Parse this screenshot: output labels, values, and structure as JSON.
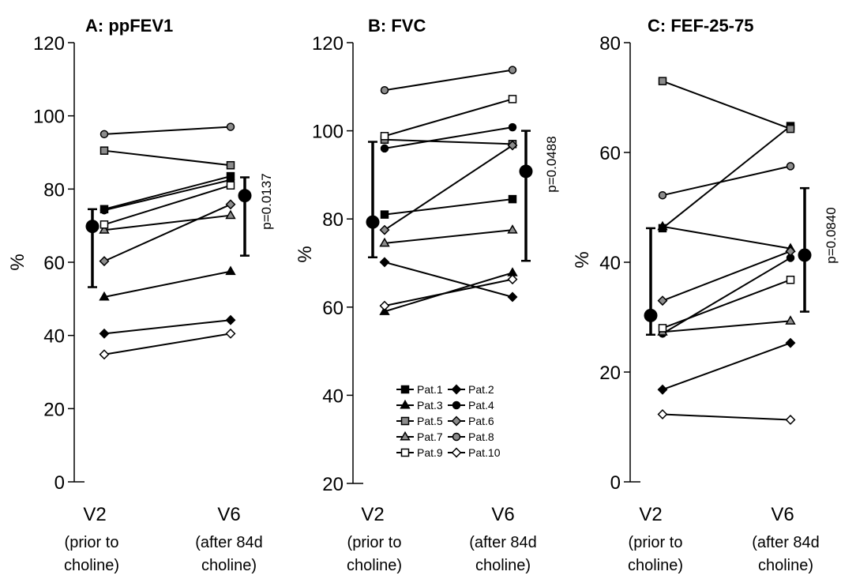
{
  "chart_data": [
    {
      "type": "line",
      "panel": "A",
      "title": "A: ppFEV1",
      "ylabel": "%",
      "ylim": [
        0,
        120
      ],
      "yticks": [
        0,
        20,
        40,
        60,
        80,
        100,
        120
      ],
      "categories": [
        {
          "main": "V2",
          "sub": [
            "(prior to",
            "choline)"
          ]
        },
        {
          "main": "V6",
          "sub": [
            "(after 84d",
            "choline)"
          ]
        }
      ],
      "series": [
        {
          "name": "Pat.1",
          "values": [
            74.5,
            83.5
          ]
        },
        {
          "name": "Pat.2",
          "values": [
            40.5,
            44.2
          ]
        },
        {
          "name": "Pat.3",
          "values": [
            50.5,
            57.5
          ]
        },
        {
          "name": "Pat.4",
          "values": [
            74.2,
            82.5
          ]
        },
        {
          "name": "Pat.5",
          "values": [
            90.5,
            86.5
          ]
        },
        {
          "name": "Pat.6",
          "values": [
            60.3,
            75.8
          ]
        },
        {
          "name": "Pat.7",
          "values": [
            68.8,
            72.8
          ]
        },
        {
          "name": "Pat.8",
          "values": [
            95.0,
            97.0
          ]
        },
        {
          "name": "Pat.9",
          "values": [
            70.3,
            81.0
          ]
        },
        {
          "name": "Pat.10",
          "values": [
            34.8,
            40.5
          ]
        }
      ],
      "summary": [
        {
          "mean": 69.8,
          "low": 53.2,
          "high": 74.5
        },
        {
          "mean": 78.2,
          "low": 61.8,
          "high": 83.2
        }
      ],
      "p_value": "p=0.0137"
    },
    {
      "type": "line",
      "panel": "B",
      "title": "B: FVC",
      "ylabel": "%",
      "ylim": [
        20,
        120
      ],
      "yticks": [
        20,
        40,
        60,
        80,
        100,
        120
      ],
      "categories": [
        {
          "main": "V2",
          "sub": [
            "(prior to",
            "choline)"
          ]
        },
        {
          "main": "V6",
          "sub": [
            "(after 84d",
            "choline)"
          ]
        }
      ],
      "series": [
        {
          "name": "Pat.1",
          "values": [
            81.0,
            84.5
          ]
        },
        {
          "name": "Pat.2",
          "values": [
            70.2,
            62.3
          ]
        },
        {
          "name": "Pat.3",
          "values": [
            59.0,
            67.8
          ]
        },
        {
          "name": "Pat.4",
          "values": [
            96.0,
            100.8
          ]
        },
        {
          "name": "Pat.5",
          "values": [
            98.0,
            97.0
          ]
        },
        {
          "name": "Pat.6",
          "values": [
            77.5,
            96.7
          ]
        },
        {
          "name": "Pat.7",
          "values": [
            74.5,
            77.5
          ]
        },
        {
          "name": "Pat.8",
          "values": [
            109.2,
            113.8
          ]
        },
        {
          "name": "Pat.9",
          "values": [
            98.8,
            107.2
          ]
        },
        {
          "name": "Pat.10",
          "values": [
            60.3,
            66.3
          ]
        }
      ],
      "summary": [
        {
          "mean": 79.3,
          "low": 71.3,
          "high": 97.5
        },
        {
          "mean": 90.8,
          "low": 70.5,
          "high": 100.0
        }
      ],
      "p_value": "p=0.0488",
      "legend": "bottom-center"
    },
    {
      "type": "line",
      "panel": "C",
      "title": "C: FEF-25-75",
      "ylabel": "%",
      "ylim": [
        0,
        80
      ],
      "yticks": [
        0,
        20,
        40,
        60,
        80
      ],
      "categories": [
        {
          "main": "V2",
          "sub": [
            "(prior to",
            "choline)"
          ]
        },
        {
          "main": "V6",
          "sub": [
            "(after 84d",
            "choline)"
          ]
        }
      ],
      "series": [
        {
          "name": "Pat.1",
          "values": [
            46.2,
            64.8
          ]
        },
        {
          "name": "Pat.2",
          "values": [
            16.8,
            25.3
          ]
        },
        {
          "name": "Pat.3",
          "values": [
            46.5,
            42.5
          ]
        },
        {
          "name": "Pat.4",
          "values": [
            27.0,
            40.8
          ]
        },
        {
          "name": "Pat.5",
          "values": [
            73.0,
            64.3
          ]
        },
        {
          "name": "Pat.6",
          "values": [
            33.0,
            42.0
          ]
        },
        {
          "name": "Pat.7",
          "values": [
            27.3,
            29.3
          ]
        },
        {
          "name": "Pat.8",
          "values": [
            52.2,
            57.5
          ]
        },
        {
          "name": "Pat.9",
          "values": [
            28.0,
            36.8
          ]
        },
        {
          "name": "Pat.10",
          "values": [
            12.3,
            11.3
          ]
        }
      ],
      "summary": [
        {
          "mean": 30.3,
          "low": 26.8,
          "high": 46.2
        },
        {
          "mean": 41.3,
          "low": 31.0,
          "high": 53.5
        }
      ],
      "p_value": "p=0.0840"
    }
  ],
  "legend_items": [
    {
      "name": "Pat.1",
      "marker": "square",
      "fill": "#000000"
    },
    {
      "name": "Pat.2",
      "marker": "diamond",
      "fill": "#000000"
    },
    {
      "name": "Pat.3",
      "marker": "triangle",
      "fill": "#000000"
    },
    {
      "name": "Pat.4",
      "marker": "circle",
      "fill": "#000000"
    },
    {
      "name": "Pat.5",
      "marker": "square",
      "fill": "#8c8c8c"
    },
    {
      "name": "Pat.6",
      "marker": "diamond",
      "fill": "#8c8c8c"
    },
    {
      "name": "Pat.7",
      "marker": "triangle",
      "fill": "#8c8c8c"
    },
    {
      "name": "Pat.8",
      "marker": "circle",
      "fill": "#8c8c8c"
    },
    {
      "name": "Pat.9",
      "marker": "square",
      "fill": "#ffffff"
    },
    {
      "name": "Pat.10",
      "marker": "diamond",
      "fill": "#ffffff"
    }
  ]
}
